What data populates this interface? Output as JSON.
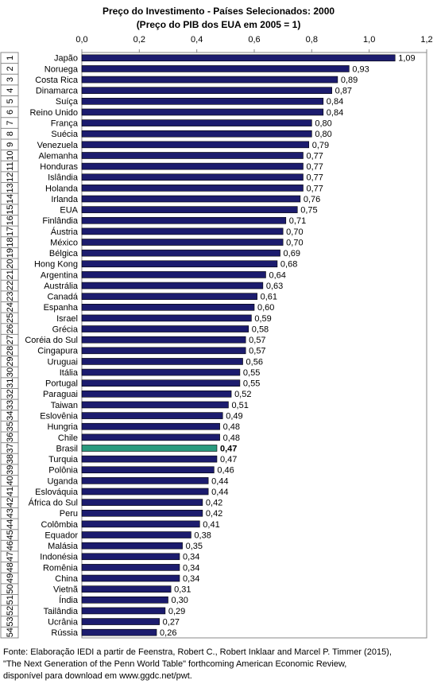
{
  "chart_data": {
    "type": "bar",
    "title": "Preço do Investimento - Países Selecionados: 2000",
    "subtitle": "(Preço do PIB dos EUA em 2005 = 1)",
    "categories": [
      "Japão",
      "Noruega",
      "Costa Rica",
      "Dinamarca",
      "Suíça",
      "Reino Unido",
      "França",
      "Suécia",
      "Venezuela",
      "Alemanha",
      "Honduras",
      "Islândia",
      "Holanda",
      "Irlanda",
      "EUA",
      "Finlândia",
      "Áustria",
      "México",
      "Bélgica",
      "Hong Kong",
      "Argentina",
      "Austrália",
      "Canadá",
      "Espanha",
      "Israel",
      "Grécia",
      "Coréia do Sul",
      "Cingapura",
      "Uruguai",
      "Itália",
      "Portugal",
      "Paraguai",
      "Taiwan",
      "Eslovênia",
      "Hungria",
      "Chile",
      "Brasil",
      "Turquia",
      "Polônia",
      "Uganda",
      "Eslováquia",
      "África do Sul",
      "Peru",
      "Colômbia",
      "Equador",
      "Malásia",
      "Indonésia",
      "Romênia",
      "China",
      "Vietnã",
      "Índia",
      "Tailândia",
      "Ucrânia",
      "Rússia"
    ],
    "ranks": [
      1,
      2,
      3,
      4,
      5,
      6,
      7,
      8,
      9,
      10,
      11,
      12,
      13,
      14,
      15,
      16,
      17,
      18,
      19,
      20,
      21,
      22,
      23,
      24,
      25,
      26,
      27,
      28,
      29,
      30,
      31,
      32,
      33,
      34,
      35,
      36,
      37,
      38,
      39,
      40,
      41,
      42,
      43,
      44,
      45,
      46,
      47,
      48,
      49,
      50,
      51,
      52,
      53,
      54
    ],
    "values": [
      1.09,
      0.93,
      0.89,
      0.87,
      0.84,
      0.84,
      0.8,
      0.8,
      0.79,
      0.77,
      0.77,
      0.77,
      0.77,
      0.76,
      0.75,
      0.71,
      0.7,
      0.7,
      0.69,
      0.68,
      0.64,
      0.63,
      0.61,
      0.6,
      0.59,
      0.58,
      0.57,
      0.57,
      0.56,
      0.55,
      0.55,
      0.52,
      0.51,
      0.49,
      0.48,
      0.48,
      0.47,
      0.47,
      0.46,
      0.44,
      0.44,
      0.42,
      0.42,
      0.41,
      0.38,
      0.35,
      0.34,
      0.34,
      0.34,
      0.31,
      0.3,
      0.29,
      0.27,
      0.26
    ],
    "value_labels": [
      "1,09",
      "0,93",
      "0,89",
      "0,87",
      "0,84",
      "0,84",
      "0,80",
      "0,80",
      "0,79",
      "0,77",
      "0,77",
      "0,77",
      "0,77",
      "0,76",
      "0,75",
      "0,71",
      "0,70",
      "0,70",
      "0,69",
      "0,68",
      "0,64",
      "0,63",
      "0,61",
      "0,60",
      "0,59",
      "0,58",
      "0,57",
      "0,57",
      "0,56",
      "0,55",
      "0,55",
      "0,52",
      "0,51",
      "0,49",
      "0,48",
      "0,48",
      "0,47",
      "0,47",
      "0,46",
      "0,44",
      "0,44",
      "0,42",
      "0,42",
      "0,41",
      "0,38",
      "0,35",
      "0,34",
      "0,34",
      "0,34",
      "0,31",
      "0,30",
      "0,29",
      "0,27",
      "0,26"
    ],
    "color": "#1c1c6e",
    "colors": [
      "#1c1c6e",
      "#1c1c6e",
      "#1c1c6e",
      "#1c1c6e",
      "#1c1c6e",
      "#1c1c6e",
      "#1c1c6e",
      "#1c1c6e",
      "#1c1c6e",
      "#1c1c6e",
      "#1c1c6e",
      "#1c1c6e",
      "#1c1c6e",
      "#1c1c6e",
      "#1c1c6e",
      "#1c1c6e",
      "#1c1c6e",
      "#1c1c6e",
      "#1c1c6e",
      "#1c1c6e",
      "#1c1c6e",
      "#1c1c6e",
      "#1c1c6e",
      "#1c1c6e",
      "#1c1c6e",
      "#1c1c6e",
      "#1c1c6e",
      "#1c1c6e",
      "#1c1c6e",
      "#1c1c6e",
      "#1c1c6e",
      "#1c1c6e",
      "#1c1c6e",
      "#1c1c6e",
      "#1c1c6e",
      "#1c1c6e",
      "#2a9a7e",
      "#1c1c6e",
      "#1c1c6e",
      "#1c1c6e",
      "#1c1c6e",
      "#1c1c6e",
      "#1c1c6e",
      "#1c1c6e",
      "#1c1c6e",
      "#1c1c6e",
      "#1c1c6e",
      "#1c1c6e",
      "#1c1c6e",
      "#1c1c6e",
      "#1c1c6e",
      "#1c1c6e",
      "#1c1c6e",
      "#1c1c6e"
    ],
    "xlim": [
      0,
      1.2
    ],
    "xticks": [
      {
        "value": 0,
        "label": "0,0"
      },
      {
        "value": 0.2,
        "label": "0,2"
      },
      {
        "value": 0.4,
        "label": "0,4"
      },
      {
        "value": 0.6,
        "label": "0,6"
      },
      {
        "value": 0.8,
        "label": "0,8"
      },
      {
        "value": 1,
        "label": "1,0"
      },
      {
        "value": 1.2,
        "label": "1,2"
      }
    ],
    "grid": false,
    "source": [
      "Fonte: Elaboração IEDI a partir de Feenstra, Robert C., Robert Inklaar and Marcel P. Timmer (2015),",
      "\"The Next Generation of the Penn World Table\" forthcoming American Economic Review,",
      "disponível para download em www.ggdc.net/pwt."
    ]
  }
}
